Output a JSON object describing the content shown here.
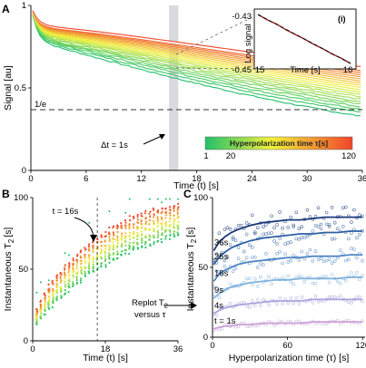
{
  "chart_data": [
    {
      "panel": "A",
      "type": "line",
      "xlabel": "Time (t) [s]",
      "ylabel": "Signal [au]",
      "xlim": [
        0,
        36
      ],
      "ylim": [
        0,
        1.0
      ],
      "x_ticks": [
        "0",
        "6",
        "12",
        "18",
        "24",
        "30",
        "36"
      ],
      "y_ticks": [
        "0",
        "0.5",
        "1"
      ],
      "reference_line": {
        "label": "1/e",
        "y": 0.368
      },
      "highlight_band": {
        "x": [
          15,
          16
        ]
      },
      "annotation": "Δt = 1s",
      "colorbar": {
        "title": "Hyperpolarization time τ[s]",
        "ticks": [
          "1",
          "20",
          "120"
        ],
        "range": [
          1,
          120
        ],
        "colors": [
          "#22c06a",
          "#f2f23a",
          "#f0452a"
        ]
      },
      "series_summary": {
        "count": 22,
        "tau_min": 1,
        "tau_max": 120,
        "signal_at_t36": [
          0.33,
          0.63
        ],
        "early_time_constant_s": 0.7
      },
      "inset": {
        "label": "(i)",
        "type": "line",
        "xlabel": "Time [s]",
        "ylabel": "Log signal",
        "xlim": [
          15,
          16
        ],
        "ylim": [
          -0.45,
          -0.43
        ],
        "x_ticks": [
          "15",
          "16"
        ],
        "y_ticks": [
          "-0.43",
          "-0.45"
        ],
        "x": [
          15.0,
          15.1,
          15.2,
          15.3,
          15.4,
          15.5,
          15.6,
          15.7,
          15.8,
          15.9,
          16.0
        ],
        "series": [
          {
            "values": [
              -0.43,
              -0.4322,
              -0.4339,
              -0.4362,
              -0.4381,
              -0.44,
              -0.4421,
              -0.444,
              -0.4461,
              -0.4479,
              -0.45
            ]
          },
          {
            "values": [
              -0.43,
              -0.432,
              -0.434,
              -0.436,
              -0.438,
              -0.44,
              -0.442,
              -0.444,
              -0.446,
              -0.448,
              -0.45
            ]
          }
        ]
      }
    },
    {
      "panel": "B",
      "type": "scatter",
      "xlabel": "Time (t) [s]",
      "ylabel": "Instantaneous T",
      "ylabel_sub": "2",
      "ylabel_unit": "[s]",
      "xlim": [
        0,
        36
      ],
      "ylim": [
        0,
        100
      ],
      "x_ticks": [
        "0",
        "18",
        "36"
      ],
      "y_ticks": [
        "0",
        "50",
        "100"
      ],
      "marker_line": {
        "x": 16,
        "label": "t = 16s"
      },
      "annotation": {
        "line1": "Replot T",
        "sub": "2",
        "line2": "versus τ"
      },
      "trend": {
        "x": [
          1,
          4,
          8,
          12,
          16,
          20,
          24,
          28,
          32,
          36
        ],
        "low": [
          12,
          22,
          33,
          42,
          50,
          56,
          62,
          66,
          70,
          73
        ],
        "high": [
          22,
          38,
          52,
          63,
          72,
          80,
          86,
          90,
          93,
          95
        ]
      }
    },
    {
      "panel": "C",
      "type": "scatter",
      "xlabel": "Hyperpolarization time (τ) [s]",
      "ylabel": "Instantaneous T",
      "ylabel_sub": "2",
      "ylabel_unit": "[s]",
      "xlim": [
        0,
        122
      ],
      "ylim": [
        0,
        100
      ],
      "x_ticks": [
        "0",
        "60",
        "120"
      ],
      "y_ticks": [
        "0",
        "50",
        "100"
      ],
      "tau_samples": [
        1,
        5,
        10,
        15,
        20,
        30,
        40,
        50,
        60,
        70,
        80,
        90,
        100,
        110,
        120
      ],
      "series": [
        {
          "name": "36s",
          "color": "#1a3a7a",
          "values": [
            62,
            68,
            72,
            75,
            77,
            80,
            82,
            83,
            84,
            84,
            85,
            86,
            86,
            86,
            86
          ]
        },
        {
          "name": "25s",
          "color": "#2e5fa3",
          "values": [
            52,
            57,
            61,
            64,
            66,
            69,
            71,
            72,
            73,
            74,
            74,
            75,
            75,
            76,
            76
          ]
        },
        {
          "name": "16s",
          "color": "#4f86c6",
          "values": [
            40,
            45,
            48,
            50,
            52,
            54,
            55,
            56,
            57,
            57,
            58,
            58,
            58,
            59,
            59
          ]
        },
        {
          "name": "9s",
          "color": "#7fb1dd",
          "values": [
            28,
            31,
            34,
            36,
            37,
            39,
            40,
            41,
            41,
            42,
            42,
            42,
            42,
            43,
            43
          ]
        },
        {
          "name": "4s",
          "color": "#a9a2dd",
          "values": [
            17,
            19,
            21,
            22,
            23,
            24,
            25,
            26,
            26,
            26,
            27,
            27,
            27,
            27,
            27
          ]
        },
        {
          "name": "t = 1s",
          "color": "#c9a4d6",
          "values": [
            6,
            7,
            8,
            8,
            9,
            9,
            10,
            10,
            10,
            10,
            11,
            11,
            11,
            11,
            11
          ]
        }
      ]
    }
  ]
}
